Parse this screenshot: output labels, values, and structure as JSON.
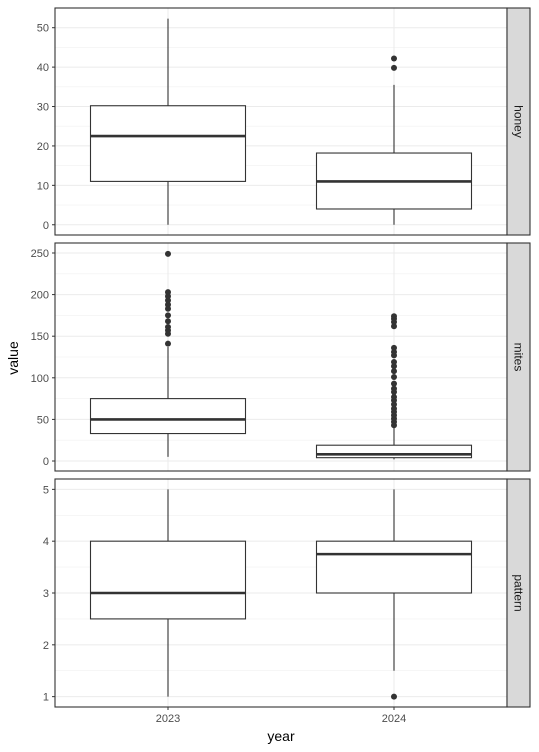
{
  "chart_data": {
    "type": "boxplot",
    "xlabel": "year",
    "ylabel": "value",
    "categories": [
      "2023",
      "2024"
    ],
    "grid": true,
    "facet_strip_position": "right",
    "facets": [
      {
        "label": "honey",
        "ylim": [
          -2.6,
          55
        ],
        "yticks": [
          0,
          10,
          20,
          30,
          40,
          50
        ],
        "boxes": [
          {
            "category": "2023",
            "whisker_low": 0,
            "q1": 11,
            "median": 22.5,
            "q3": 30.2,
            "whisker_high": 52.3,
            "outliers": []
          },
          {
            "category": "2024",
            "whisker_low": 0,
            "q1": 4,
            "median": 11,
            "q3": 18.2,
            "whisker_high": 35.5,
            "outliers": [
              39.8,
              42.2
            ]
          }
        ]
      },
      {
        "label": "mites",
        "ylim": [
          -12,
          262
        ],
        "yticks": [
          0,
          50,
          100,
          150,
          200,
          250
        ],
        "boxes": [
          {
            "category": "2023",
            "whisker_low": 5,
            "q1": 33,
            "median": 50,
            "q3": 75,
            "whisker_high": 137,
            "outliers": [
              141,
              153,
              157,
              161,
              168,
              175,
              183,
              188,
              193,
              198,
              203,
              249
            ]
          },
          {
            "category": "2024",
            "whisker_low": 2,
            "q1": 4,
            "median": 8,
            "q3": 19,
            "whisker_high": 41,
            "outliers": [
              43,
              47,
              51,
              55,
              59,
              63,
              68,
              73,
              77,
              83,
              87,
              93,
              101,
              108,
              114,
              119,
              127,
              131,
              136,
              162,
              167,
              171,
              174
            ]
          }
        ]
      },
      {
        "label": "pattern",
        "ylim": [
          0.8,
          5.2
        ],
        "yticks": [
          1,
          2,
          3,
          4,
          5
        ],
        "boxes": [
          {
            "category": "2023",
            "whisker_low": 1,
            "q1": 2.5,
            "median": 3,
            "q3": 4,
            "whisker_high": 5,
            "outliers": []
          },
          {
            "category": "2024",
            "whisker_low": 1.5,
            "q1": 3,
            "median": 3.75,
            "q3": 4,
            "whisker_high": 5,
            "outliers": [
              1
            ]
          }
        ]
      }
    ]
  }
}
